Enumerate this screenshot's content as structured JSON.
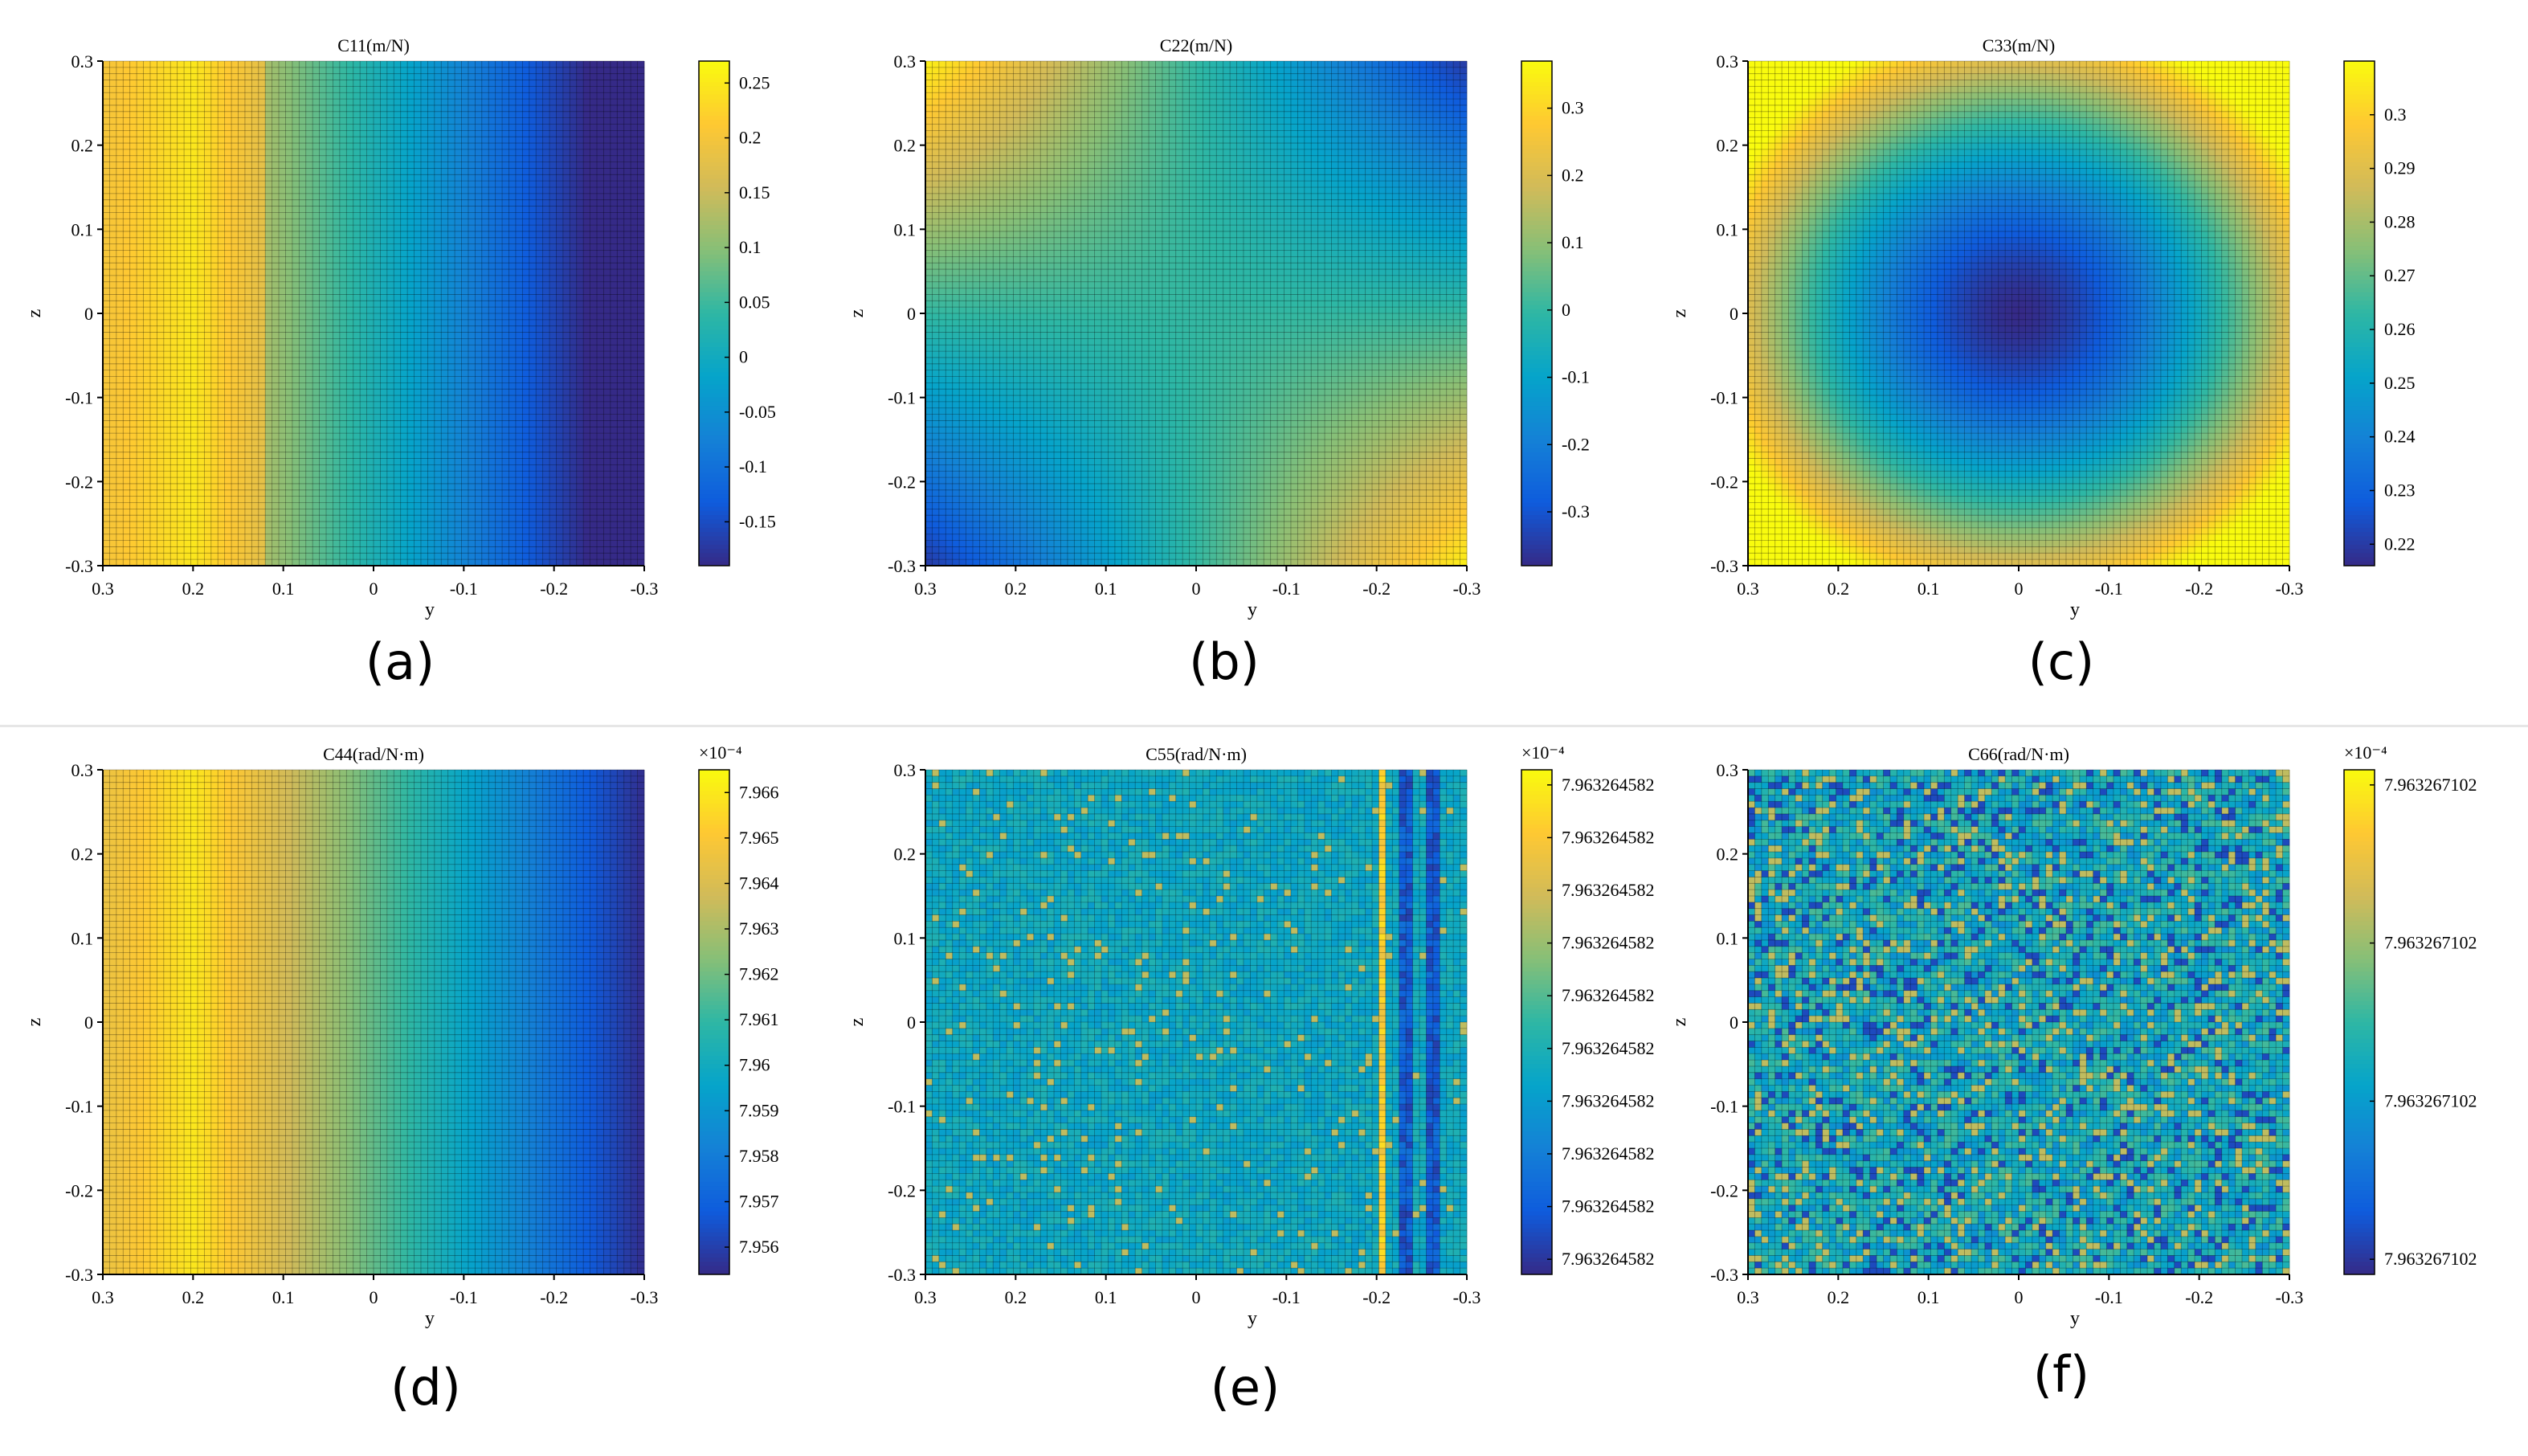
{
  "chart_data": [
    {
      "type": "heatmap",
      "title": "C11(m/N)",
      "panel_label": "(a)",
      "xlabel": "y",
      "ylabel": "z",
      "x_ticks": [
        "0.3",
        "0.2",
        "0.1",
        "0",
        "-0.1",
        "-0.2",
        "-0.3"
      ],
      "y_ticks": [
        "0.3",
        "0.2",
        "0.1",
        "0",
        "-0.1",
        "-0.2",
        "-0.3"
      ],
      "xlim": [
        0.3,
        -0.3
      ],
      "ylim": [
        -0.3,
        0.3
      ],
      "grid": true,
      "colorbar": {
        "range": [
          -0.19,
          0.27
        ],
        "exponent": "",
        "ticks": [
          "0.25",
          "0.2",
          "0.15",
          "0.1",
          "0.05",
          "0",
          "-0.05",
          "-0.1",
          "-0.15"
        ]
      },
      "field": {
        "kind": "linear_y",
        "value_at_y_0.3": 0.2,
        "peak_at_y": 0.2,
        "value_at_y_-0.3": -0.19,
        "step_at_y": 0.12
      }
    },
    {
      "type": "heatmap",
      "title": "C22(m/N)",
      "panel_label": "(b)",
      "xlabel": "y",
      "ylabel": "z",
      "x_ticks": [
        "0.3",
        "0.2",
        "0.1",
        "0",
        "-0.1",
        "-0.2",
        "-0.3"
      ],
      "y_ticks": [
        "0.3",
        "0.2",
        "0.1",
        "0",
        "-0.1",
        "-0.2",
        "-0.3"
      ],
      "xlim": [
        0.3,
        -0.3
      ],
      "ylim": [
        -0.3,
        0.3
      ],
      "grid": true,
      "colorbar": {
        "range": [
          -0.38,
          0.37
        ],
        "exponent": "",
        "ticks": [
          "0.3",
          "0.2",
          "0.1",
          "0",
          "-0.1",
          "-0.2",
          "-0.3"
        ]
      },
      "field": {
        "kind": "saddle",
        "max_corners": [
          "y=0.3,z=0.3",
          "y=-0.3,z=-0.3"
        ],
        "min_corners": [
          "y=-0.3,z=0.3",
          "y=0.3,z=-0.3"
        ]
      }
    },
    {
      "type": "heatmap",
      "title": "C33(m/N)",
      "panel_label": "(c)",
      "xlabel": "y",
      "ylabel": "z",
      "x_ticks": [
        "0.3",
        "0.2",
        "0.1",
        "0",
        "-0.1",
        "-0.2",
        "-0.3"
      ],
      "y_ticks": [
        "0.3",
        "0.2",
        "0.1",
        "0",
        "-0.1",
        "-0.2",
        "-0.3"
      ],
      "xlim": [
        0.3,
        -0.3
      ],
      "ylim": [
        -0.3,
        0.3
      ],
      "grid": true,
      "colorbar": {
        "range": [
          0.216,
          0.31
        ],
        "exponent": "",
        "ticks": [
          "0.3",
          "0.29",
          "0.28",
          "0.27",
          "0.26",
          "0.25",
          "0.24",
          "0.23",
          "0.22"
        ]
      },
      "field": {
        "kind": "radial",
        "min_value": 0.216,
        "min_at": [
          0,
          0
        ],
        "value_at_radius_0.3": 0.29
      }
    },
    {
      "type": "heatmap",
      "title": "C44(rad/N·m)",
      "panel_label": "(d)",
      "xlabel": "y",
      "ylabel": "z",
      "x_ticks": [
        "0.3",
        "0.2",
        "0.1",
        "0",
        "-0.1",
        "-0.2",
        "-0.3"
      ],
      "y_ticks": [
        "0.3",
        "0.2",
        "0.1",
        "0",
        "-0.1",
        "-0.2",
        "-0.3"
      ],
      "xlim": [
        0.3,
        -0.3
      ],
      "ylim": [
        -0.3,
        0.3
      ],
      "grid": true,
      "colorbar": {
        "range": [
          7.9554,
          7.9665
        ],
        "exponent": "×10⁻⁴",
        "ticks": [
          "7.966",
          "7.965",
          "7.964",
          "7.963",
          "7.962",
          "7.961",
          "7.96",
          "7.959",
          "7.958",
          "7.957",
          "7.956"
        ]
      },
      "field": {
        "kind": "linear_y",
        "value_at_y_0.3": 7.9645,
        "peak_at_y": 0.2,
        "value_at_y_-0.3": 7.9555
      }
    },
    {
      "type": "heatmap",
      "title": "C55(rad/N·m)",
      "panel_label": "(e)",
      "xlabel": "y",
      "ylabel": "z",
      "x_ticks": [
        "0.3",
        "0.2",
        "0.1",
        "0",
        "-0.1",
        "-0.2",
        "-0.3"
      ],
      "y_ticks": [
        "0.3",
        "0.2",
        "0.1",
        "0",
        "-0.1",
        "-0.2",
        "-0.3"
      ],
      "xlim": [
        0.3,
        -0.3
      ],
      "ylim": [
        -0.3,
        0.3
      ],
      "grid": true,
      "colorbar": {
        "range": [
          0,
          1
        ],
        "exponent": "×10⁻⁴",
        "ticks": [
          "7.963264582",
          "7.963264582",
          "7.963264582",
          "7.963264582",
          "7.963264582",
          "7.963264582",
          "7.963264582",
          "7.963264582",
          "7.963264582",
          "7.963264582"
        ]
      },
      "field": {
        "kind": "striped_noise",
        "base_level": 0.4,
        "bright_stripe_y": -0.205,
        "dark_stripe_y": [
          -0.235,
          -0.26
        ]
      }
    },
    {
      "type": "heatmap",
      "title": "C66(rad/N·m)",
      "panel_label": "(f)",
      "xlabel": "y",
      "ylabel": "z",
      "x_ticks": [
        "0.3",
        "0.2",
        "0.1",
        "0",
        "-0.1",
        "-0.2",
        "-0.3"
      ],
      "y_ticks": [
        "0.3",
        "0.2",
        "0.1",
        "0",
        "-0.1",
        "-0.2",
        "-0.3"
      ],
      "xlim": [
        0.3,
        -0.3
      ],
      "ylim": [
        -0.3,
        0.3
      ],
      "grid": true,
      "colorbar": {
        "range": [
          0,
          1
        ],
        "exponent": "×10⁻⁴",
        "ticks": [
          "7.963267102",
          "7.963267102",
          "7.963267102",
          "7.963267102"
        ]
      },
      "field": {
        "kind": "random_noise",
        "base_level": 0.42
      }
    }
  ],
  "colors": {
    "parula": [
      "#352a87",
      "#0f5cdd",
      "#1481d6",
      "#06a4ca",
      "#2eb7a4",
      "#87bf77",
      "#d1bb59",
      "#fec832",
      "#f9fb0e"
    ],
    "grid_line": "#000000",
    "divider": "#e6e6e6"
  }
}
